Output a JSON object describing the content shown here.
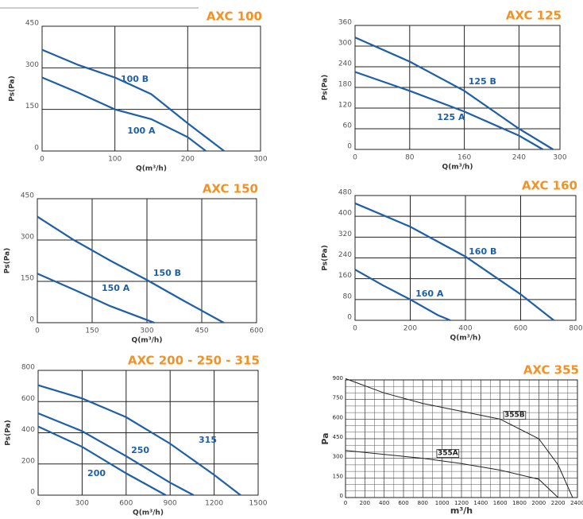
{
  "chart_data": [
    {
      "type": "line",
      "title": "AXC 100",
      "xlabel": "Q(m³/h)",
      "ylabel": "Ps(Pa)",
      "xlim": [
        0,
        300
      ],
      "ylim": [
        0,
        450
      ],
      "xticks": [
        0,
        100,
        200,
        300
      ],
      "yticks": [
        0,
        150,
        300,
        450
      ],
      "grid": true,
      "series": [
        {
          "name": "100 A",
          "color": "#1f5fa8",
          "x": [
            0,
            50,
            100,
            150,
            200,
            225
          ],
          "values": [
            265,
            210,
            150,
            115,
            50,
            0
          ]
        },
        {
          "name": "100 B",
          "color": "#1f5fa8",
          "x": [
            0,
            50,
            100,
            150,
            200,
            250
          ],
          "values": [
            365,
            310,
            265,
            205,
            100,
            0
          ]
        }
      ]
    },
    {
      "type": "line",
      "title": "AXC 125",
      "xlabel": "Q(m³/h)",
      "ylabel": "Ps(Pa)",
      "xlim": [
        0,
        300
      ],
      "ylim": [
        0,
        360
      ],
      "xticks": [
        0,
        80,
        160,
        240,
        300
      ],
      "yticks": [
        0,
        60,
        120,
        180,
        240,
        300,
        360
      ],
      "grid": true,
      "series": [
        {
          "name": "125 A",
          "color": "#1f5fa8",
          "x": [
            0,
            80,
            160,
            240,
            275
          ],
          "values": [
            225,
            170,
            110,
            40,
            0
          ]
        },
        {
          "name": "125 B",
          "color": "#1f5fa8",
          "x": [
            0,
            80,
            160,
            240,
            290
          ],
          "values": [
            325,
            255,
            170,
            60,
            0
          ]
        }
      ]
    },
    {
      "type": "line",
      "title": "AXC 150",
      "xlabel": "Q(m³/h)",
      "ylabel": "Ps(Pa)",
      "xlim": [
        0,
        600
      ],
      "ylim": [
        0,
        450
      ],
      "xticks": [
        0,
        150,
        300,
        450,
        600
      ],
      "yticks": [
        0,
        150,
        300,
        450
      ],
      "grid": true,
      "series": [
        {
          "name": "150 A",
          "color": "#1f5fa8",
          "x": [
            0,
            100,
            200,
            300,
            320
          ],
          "values": [
            178,
            120,
            60,
            10,
            0
          ]
        },
        {
          "name": "150 B",
          "color": "#1f5fa8",
          "x": [
            0,
            100,
            200,
            300,
            400,
            510
          ],
          "values": [
            385,
            300,
            225,
            155,
            80,
            0
          ]
        }
      ]
    },
    {
      "type": "line",
      "title": "AXC 160",
      "xlabel": "Q(m³/h)",
      "ylabel": "Ps(Pa)",
      "xlim": [
        0,
        800
      ],
      "ylim": [
        0,
        480
      ],
      "xticks": [
        0,
        200,
        400,
        600,
        800
      ],
      "yticks": [
        0,
        80,
        160,
        240,
        320,
        400,
        480
      ],
      "grid": true,
      "series": [
        {
          "name": "160 A",
          "color": "#1f5fa8",
          "x": [
            0,
            100,
            200,
            300,
            345
          ],
          "values": [
            195,
            135,
            80,
            20,
            0
          ]
        },
        {
          "name": "160 B",
          "color": "#1f5fa8",
          "x": [
            0,
            200,
            400,
            600,
            720
          ],
          "values": [
            450,
            360,
            245,
            100,
            0
          ]
        }
      ]
    },
    {
      "type": "line",
      "title": "AXC 200 - 250 - 315",
      "xlabel": "Q(m³/h)",
      "ylabel": "Ps(Pa)",
      "xlim": [
        0,
        1500
      ],
      "ylim": [
        0,
        800
      ],
      "xticks": [
        0,
        300,
        600,
        900,
        1200,
        1500
      ],
      "yticks": [
        0,
        200,
        400,
        600,
        800
      ],
      "grid": true,
      "series": [
        {
          "name": "200",
          "color": "#1f5fa8",
          "x": [
            0,
            300,
            600,
            870
          ],
          "values": [
            440,
            310,
            140,
            0
          ]
        },
        {
          "name": "250",
          "color": "#1f5fa8",
          "x": [
            0,
            300,
            600,
            900,
            1060
          ],
          "values": [
            525,
            410,
            250,
            80,
            0
          ]
        },
        {
          "name": "315",
          "color": "#1f5fa8",
          "x": [
            0,
            300,
            600,
            900,
            1200,
            1380
          ],
          "values": [
            705,
            620,
            500,
            330,
            130,
            0
          ]
        }
      ]
    },
    {
      "type": "line",
      "title": "AXC 355",
      "xlabel": "m³/h",
      "ylabel": "Pa",
      "xlim": [
        0,
        2400
      ],
      "ylim": [
        0,
        900
      ],
      "xticks": [
        0,
        200,
        400,
        600,
        800,
        1000,
        1200,
        1400,
        1600,
        1800,
        2000,
        2200,
        2400
      ],
      "yticks": [
        0,
        150,
        300,
        450,
        600,
        750,
        900
      ],
      "grid": true,
      "minor_grid": true,
      "boxed_labels": true,
      "series": [
        {
          "name": "355A",
          "color": "#222222",
          "x": [
            0,
            400,
            800,
            1200,
            1600,
            2000,
            2200
          ],
          "values": [
            360,
            330,
            300,
            260,
            210,
            140,
            0
          ]
        },
        {
          "name": "355B",
          "color": "#222222",
          "x": [
            0,
            400,
            800,
            1200,
            1600,
            2000,
            2200,
            2350
          ],
          "values": [
            910,
            800,
            720,
            660,
            600,
            450,
            250,
            0
          ]
        }
      ]
    }
  ]
}
